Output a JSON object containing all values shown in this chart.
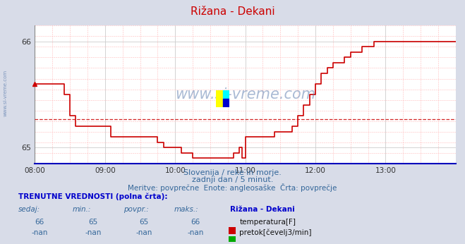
{
  "title": "Rižana - Dekani",
  "bg_color": "#d8dce8",
  "plot_bg_color": "#ffffff",
  "grid_major_color": "#cccccc",
  "grid_minor_color": "#ffdddd",
  "line_color": "#cc0000",
  "avg_line_color": "#cc0000",
  "border_bottom_color": "#0000bb",
  "x_min": 0,
  "x_max": 360,
  "y_min": 64.85,
  "y_max": 66.15,
  "y_ticks": [
    65,
    66
  ],
  "x_tick_labels": [
    "08:00",
    "09:00",
    "10:00",
    "11:00",
    "12:00",
    "13:00"
  ],
  "x_tick_positions": [
    0,
    60,
    120,
    180,
    240,
    300
  ],
  "avg_value": 65.27,
  "subtitle1": "Slovenija / reke in morje.",
  "subtitle2": "zadnji dan / 5 minut.",
  "subtitle3": "Meritve: povprečne  Enote: angleosaške  Črta: povprečje",
  "legend_title": "TRENUTNE VREDNOSTI (polna črta):",
  "col_headers": [
    "sedaj:",
    "min.:",
    "povpr.:",
    "maks.:"
  ],
  "row1_values": [
    "66",
    "65",
    "65",
    "66"
  ],
  "row2_values": [
    "-nan",
    "-nan",
    "-nan",
    "-nan"
  ],
  "station_name": "Rižana - Dekani",
  "series1_label": "temperatura[F]",
  "series2_label": "pretok[čevelj3/min]",
  "series1_color": "#cc0000",
  "series2_color": "#00aa00",
  "watermark_color": "#5577aa",
  "temp_data": [
    [
      0,
      65.6
    ],
    [
      10,
      65.6
    ],
    [
      20,
      65.6
    ],
    [
      25,
      65.5
    ],
    [
      30,
      65.3
    ],
    [
      35,
      65.2
    ],
    [
      40,
      65.2
    ],
    [
      50,
      65.2
    ],
    [
      55,
      65.2
    ],
    [
      60,
      65.2
    ],
    [
      65,
      65.1
    ],
    [
      70,
      65.1
    ],
    [
      80,
      65.1
    ],
    [
      90,
      65.1
    ],
    [
      95,
      65.1
    ],
    [
      100,
      65.1
    ],
    [
      105,
      65.05
    ],
    [
      110,
      65.0
    ],
    [
      115,
      65.0
    ],
    [
      120,
      65.0
    ],
    [
      125,
      64.95
    ],
    [
      130,
      64.95
    ],
    [
      135,
      64.9
    ],
    [
      140,
      64.9
    ],
    [
      145,
      64.9
    ],
    [
      150,
      64.9
    ],
    [
      155,
      64.9
    ],
    [
      160,
      64.9
    ],
    [
      165,
      64.9
    ],
    [
      170,
      64.95
    ],
    [
      175,
      65.0
    ],
    [
      177,
      64.9
    ],
    [
      180,
      65.1
    ],
    [
      185,
      65.1
    ],
    [
      190,
      65.1
    ],
    [
      195,
      65.1
    ],
    [
      200,
      65.1
    ],
    [
      205,
      65.15
    ],
    [
      210,
      65.15
    ],
    [
      215,
      65.15
    ],
    [
      220,
      65.2
    ],
    [
      225,
      65.3
    ],
    [
      230,
      65.4
    ],
    [
      235,
      65.5
    ],
    [
      240,
      65.6
    ],
    [
      245,
      65.7
    ],
    [
      250,
      65.75
    ],
    [
      255,
      65.8
    ],
    [
      260,
      65.8
    ],
    [
      265,
      65.85
    ],
    [
      270,
      65.9
    ],
    [
      275,
      65.9
    ],
    [
      280,
      65.95
    ],
    [
      285,
      65.95
    ],
    [
      290,
      66.0
    ],
    [
      295,
      66.0
    ],
    [
      300,
      66.0
    ],
    [
      305,
      66.0
    ],
    [
      310,
      66.0
    ],
    [
      315,
      66.0
    ],
    [
      320,
      66.0
    ],
    [
      325,
      66.0
    ],
    [
      330,
      66.0
    ],
    [
      335,
      66.0
    ],
    [
      340,
      66.0
    ],
    [
      345,
      66.0
    ],
    [
      350,
      66.0
    ],
    [
      355,
      66.0
    ],
    [
      360,
      66.0
    ]
  ]
}
